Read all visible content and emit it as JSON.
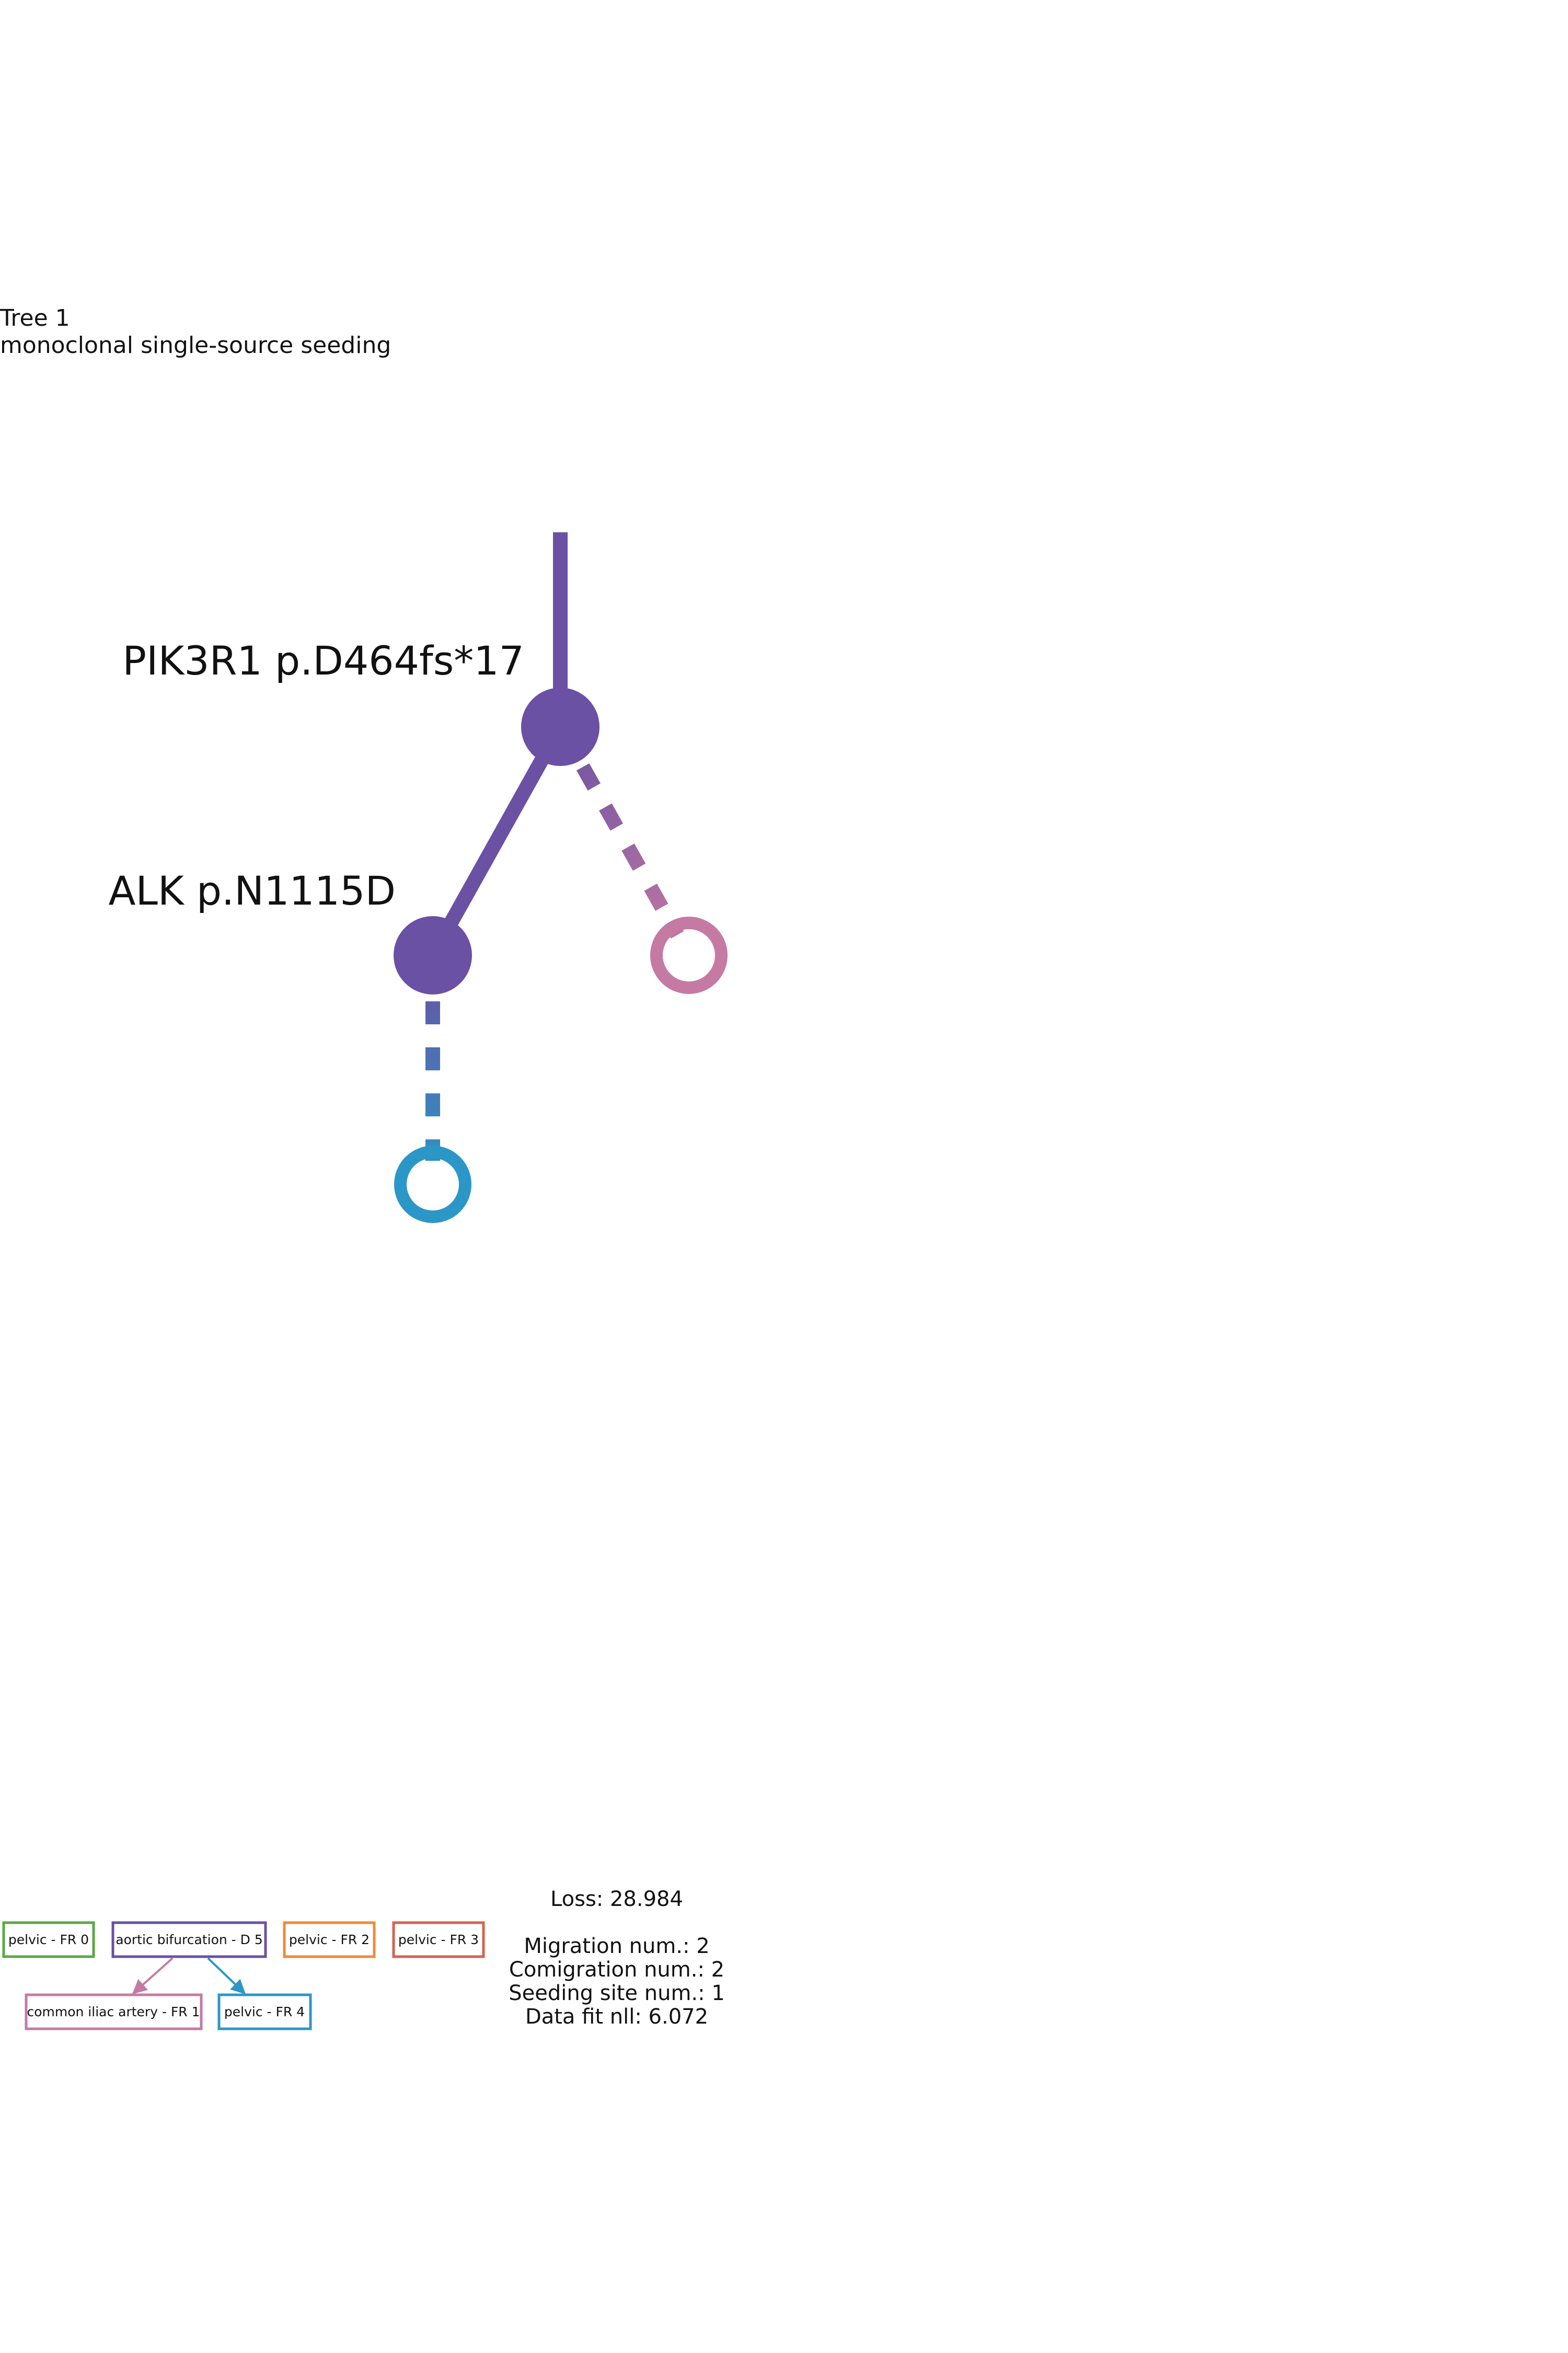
{
  "header": {
    "title": "Tree 1",
    "subtitle": "monoclonal single-source seeding"
  },
  "tree": {
    "nodes": [
      {
        "id": "n1",
        "label": "PIK3R1 p.D464fs*17",
        "color": "#6a51a3",
        "filled": true
      },
      {
        "id": "n2",
        "label": "ALK p.N1115D",
        "color": "#6a51a3",
        "filled": true
      },
      {
        "id": "n3",
        "label": "",
        "color": "#c57aa3",
        "filled": false
      },
      {
        "id": "n4",
        "label": "",
        "color": "#2b97c6",
        "filled": false
      }
    ],
    "edges": [
      {
        "from": "root",
        "to": "n1",
        "style": "solid",
        "colors": [
          "#6a51a3"
        ]
      },
      {
        "from": "n1",
        "to": "n2",
        "style": "solid",
        "colors": [
          "#6a51a3"
        ]
      },
      {
        "from": "n1",
        "to": "n3",
        "style": "dashed",
        "colors": [
          "#6a51a3",
          "#c57aa3"
        ]
      },
      {
        "from": "n2",
        "to": "n4",
        "style": "dashed",
        "colors": [
          "#6a51a3",
          "#2b97c6"
        ]
      }
    ]
  },
  "legend": {
    "sites": [
      {
        "label": "pelvic - FR 0",
        "color": "#5aa845"
      },
      {
        "label": "aortic bifurcation - D 5",
        "color": "#6a51a3"
      },
      {
        "label": "pelvic - FR 2",
        "color": "#f08a3a"
      },
      {
        "label": "pelvic - FR 3",
        "color": "#d2634f"
      },
      {
        "label": "common iliac artery - FR 1",
        "color": "#c57aa3"
      },
      {
        "label": "pelvic - FR 4",
        "color": "#2b97c6"
      }
    ],
    "migrations": [
      {
        "from": "aortic bifurcation - D 5",
        "to": "common iliac artery - FR 1"
      },
      {
        "from": "aortic bifurcation - D 5",
        "to": "pelvic - FR 4"
      }
    ]
  },
  "stats": {
    "loss": "Loss: 28.984",
    "migration": "Migration num.: 2",
    "comigration": "Comigration num.: 2",
    "seeding": "Seeding site num.: 1",
    "datafit": "Data fit nll: 6.072"
  }
}
